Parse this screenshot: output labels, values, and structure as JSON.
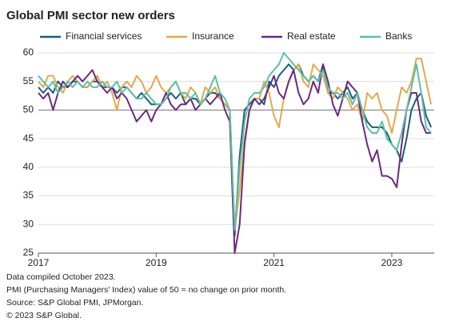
{
  "chart_data": {
    "type": "line",
    "title": "Global PMI sector new orders",
    "notes": [
      "Data compiled October 2023.",
      "PMI (Purchasing Managers' Index) value of 50 = no change on prior month.",
      "Source: S&P Global PMI, JPMorgan.",
      "© 2023 S&P Global."
    ],
    "x": [
      2017,
      2017.083,
      2017.167,
      2017.25,
      2017.333,
      2017.417,
      2017.5,
      2017.583,
      2017.667,
      2017.75,
      2017.833,
      2017.917,
      2018,
      2018.083,
      2018.167,
      2018.25,
      2018.333,
      2018.417,
      2018.5,
      2018.583,
      2018.667,
      2018.75,
      2018.833,
      2018.917,
      2019,
      2019.083,
      2019.167,
      2019.25,
      2019.333,
      2019.417,
      2019.5,
      2019.583,
      2019.667,
      2019.75,
      2019.833,
      2019.917,
      2020,
      2020.083,
      2020.167,
      2020.25,
      2020.333,
      2020.417,
      2020.5,
      2020.583,
      2020.667,
      2020.75,
      2020.833,
      2020.917,
      2021,
      2021.083,
      2021.167,
      2021.25,
      2021.333,
      2021.417,
      2021.5,
      2021.583,
      2021.667,
      2021.75,
      2021.833,
      2021.917,
      2022,
      2022.083,
      2022.167,
      2022.25,
      2022.333,
      2022.417,
      2022.5,
      2022.583,
      2022.667,
      2022.75,
      2022.833,
      2022.917,
      2023,
      2023.083,
      2023.167,
      2023.25,
      2023.333,
      2023.417,
      2023.5,
      2023.583,
      2023.667
    ],
    "series": [
      {
        "name": "Financial services",
        "color": "#1b5e7b",
        "values": [
          54,
          53,
          54,
          53,
          55,
          54,
          54,
          55,
          55,
          54,
          54,
          55,
          55,
          54,
          54,
          54,
          53,
          54,
          54,
          53,
          52,
          53,
          52,
          51,
          51,
          51,
          52,
          53,
          52,
          53,
          51,
          52,
          52,
          51,
          52,
          53,
          53,
          52,
          51,
          50,
          28,
          42,
          50,
          51,
          52,
          52,
          51,
          55,
          54,
          56,
          57,
          58,
          57,
          58,
          56,
          55,
          56,
          55,
          58,
          53,
          53,
          52,
          53,
          54,
          52,
          53,
          50,
          48,
          47,
          47,
          47,
          46,
          44,
          43,
          41,
          45,
          50,
          52,
          53,
          49,
          47
        ]
      },
      {
        "name": "Insurance",
        "color": "#e6a74c",
        "values": [
          55,
          54,
          56,
          56,
          54,
          53,
          55,
          56,
          55,
          54,
          54,
          55,
          56,
          54,
          55,
          53,
          50,
          54,
          55,
          54,
          56,
          55,
          53,
          54,
          56,
          54,
          53,
          54,
          55,
          53,
          52,
          54,
          53,
          51,
          54,
          53,
          54,
          52,
          51,
          50,
          29,
          36,
          45,
          50,
          52,
          52,
          55,
          53,
          49,
          47,
          52,
          55,
          57,
          58,
          55,
          54,
          58,
          57,
          56,
          53,
          52,
          54,
          53,
          52,
          50,
          51,
          48,
          53,
          52,
          53,
          50,
          49,
          46,
          50,
          54,
          53,
          55,
          59,
          59,
          55,
          51
        ]
      },
      {
        "name": "Real estate",
        "color": "#6b2a7e",
        "values": [
          53,
          52,
          53,
          50,
          53,
          55,
          54,
          55,
          56,
          55,
          56,
          57,
          55,
          54,
          53,
          54,
          52,
          53,
          52,
          50,
          48,
          49,
          50,
          48,
          50,
          51,
          53,
          51,
          50,
          51,
          51,
          52,
          50,
          51,
          52,
          51,
          52,
          53,
          50,
          48,
          25,
          30,
          44,
          50,
          52,
          51,
          52,
          54,
          56,
          53,
          52,
          55,
          57,
          53,
          51,
          52,
          55,
          53,
          58,
          55,
          51,
          49,
          52,
          55,
          54,
          53,
          48,
          44,
          41,
          43,
          38.5,
          38.5,
          38,
          36.5,
          44,
          50,
          53,
          53,
          48,
          46,
          46
        ]
      },
      {
        "name": "Banks",
        "color": "#5cbfa7",
        "values": [
          56,
          55,
          54,
          55,
          53,
          54,
          55,
          54,
          55,
          54,
          55,
          54,
          54,
          55,
          54,
          54,
          55,
          53,
          54,
          53,
          52,
          52,
          53,
          52,
          51,
          51,
          52,
          54,
          55,
          53,
          53,
          52,
          53,
          51,
          52,
          54,
          56,
          53,
          52,
          50,
          29,
          40,
          48,
          52,
          53,
          53,
          54,
          56,
          57,
          58,
          60,
          59,
          58,
          57,
          56,
          55,
          56,
          55,
          57,
          54,
          53,
          53,
          52,
          53,
          51,
          53,
          50,
          47,
          46,
          46,
          48,
          45,
          44,
          43,
          46,
          50,
          54,
          58,
          53,
          47,
          46
        ]
      }
    ],
    "xlim": [
      2017,
      2023.72
    ],
    "xticks": [
      2017,
      2019,
      2021,
      2023
    ],
    "ylim": [
      25,
      60
    ],
    "yticks": [
      60,
      55,
      50,
      45,
      40,
      35,
      30,
      25
    ],
    "reference_line": 50,
    "grid": true
  }
}
